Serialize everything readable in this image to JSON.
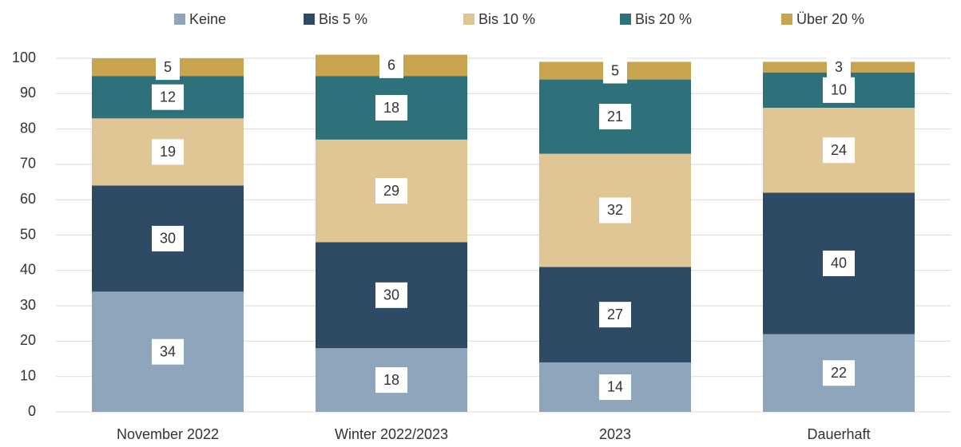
{
  "chart_data": {
    "type": "stacked_bar",
    "categories": [
      "November 2022",
      "Winter 2022/2023",
      "2023",
      "Dauerhaft"
    ],
    "series": [
      {
        "name": "Keine",
        "color": "#8fa5bb",
        "values": [
          34,
          18,
          14,
          22
        ]
      },
      {
        "name": "Bis 5 %",
        "color": "#2e4a64",
        "values": [
          30,
          30,
          27,
          40
        ]
      },
      {
        "name": "Bis 10 %",
        "color": "#e0c595",
        "values": [
          19,
          29,
          32,
          24
        ]
      },
      {
        "name": "Bis 20 %",
        "color": "#2f717a",
        "values": [
          12,
          18,
          21,
          10
        ]
      },
      {
        "name": "Über 20 %",
        "color": "#c9a44e",
        "values": [
          5,
          6,
          5,
          3
        ]
      }
    ],
    "ylim": [
      0,
      100
    ],
    "yticks": [
      0,
      10,
      20,
      30,
      40,
      50,
      60,
      70,
      80,
      90,
      100
    ],
    "grid": true,
    "legend": "top"
  }
}
